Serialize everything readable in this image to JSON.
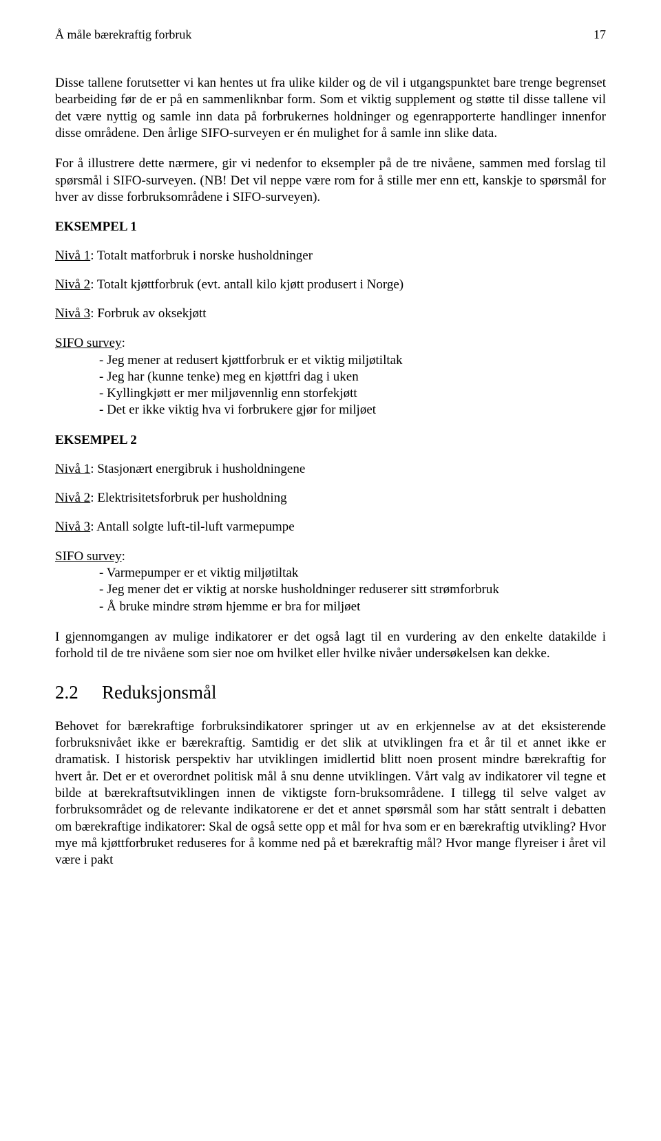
{
  "header": {
    "running_title": "Å måle bærekraftig forbruk",
    "page_number": "17"
  },
  "para1": "Disse tallene forutsetter vi kan hentes ut fra ulike kilder og de vil i utgangspunktet bare trenge begrenset bearbeiding før de er på en sammenliknbar form. Som et viktig supplement og støtte til disse tallene vil det være nyttig og samle inn data på forbrukernes holdninger og egenrapporterte handlinger innenfor disse områdene. Den årlige SIFO-surveyen er én mulighet for å samle inn slike data.",
  "para2": "For å illustrere dette nærmere, gir vi nedenfor to eksempler på de tre nivåene, sammen med forslag til spørsmål i SIFO-surveyen. (NB! Det vil neppe være rom for å stille mer enn ett, kanskje to spørsmål for hver av disse forbruksområdene i SIFO-surveyen).",
  "example1": {
    "heading": "EKSEMPEL 1",
    "niv1_label": "Nivå 1",
    "niv1_text": ": Totalt matforbruk i norske husholdninger",
    "niv2_label": "Nivå 2",
    "niv2_text": ": Totalt kjøttforbruk (evt. antall kilo kjøtt produsert i Norge)",
    "niv3_label": "Nivå 3",
    "niv3_text": ": Forbruk av oksekjøtt",
    "survey_label": "SIFO survey",
    "survey_colon": ":",
    "items": [
      "- Jeg mener at redusert kjøttforbruk er et viktig miljøtiltak",
      "- Jeg har (kunne tenke) meg en kjøttfri dag i uken",
      "- Kyllingkjøtt er mer miljøvennlig enn storfekjøtt",
      "- Det er ikke viktig hva vi forbrukere gjør for miljøet"
    ]
  },
  "example2": {
    "heading": "EKSEMPEL 2",
    "niv1_label": "Nivå 1",
    "niv1_text": ": Stasjonært energibruk i husholdningene",
    "niv2_label": "Nivå 2",
    "niv2_text": ": Elektrisitetsforbruk per husholdning",
    "niv3_label": "Nivå 3",
    "niv3_text": ": Antall solgte luft-til-luft varmepumpe",
    "survey_label": "SIFO survey",
    "survey_colon": ":",
    "items": [
      "- Varmepumper er et viktig miljøtiltak",
      "- Jeg mener det er viktig at norske husholdninger reduserer sitt strømforbruk",
      "- Å bruke mindre strøm hjemme er bra for miljøet"
    ]
  },
  "para3": "I gjennomgangen av mulige indikatorer er det også lagt til en vurdering av den enkelte datakilde i forhold til de tre nivåene som sier noe om hvilket eller hvilke nivåer undersøkelsen kan dekke.",
  "section": {
    "number": "2.2",
    "title": "Reduksjonsmål"
  },
  "para4": "Behovet for bærekraftige forbruksindikatorer springer ut av en erkjennelse av at det eksisterende forbruksnivået ikke er bærekraftig. Samtidig er det slik at utviklingen fra et år til et annet ikke er dramatisk. I historisk perspektiv har utviklingen imidlertid blitt noen prosent mindre bærekraftig for hvert år. Det er et overordnet politisk mål å snu denne utviklingen. Vårt valg av indikatorer vil tegne et bilde at bærekraftsutviklingen innen de viktigste forn-bruksområdene. I tillegg til selve valget av forbruksområdet og de relevante indikatorene er det et annet spørsmål som har stått sentralt i debatten om bærekraftige indikatorer: Skal de også sette opp et mål for hva som er en bærekraftig utvikling? Hvor mye må kjøttforbruket reduseres for å komme ned på et bærekraftig mål? Hvor mange flyreiser i året vil være i pakt"
}
